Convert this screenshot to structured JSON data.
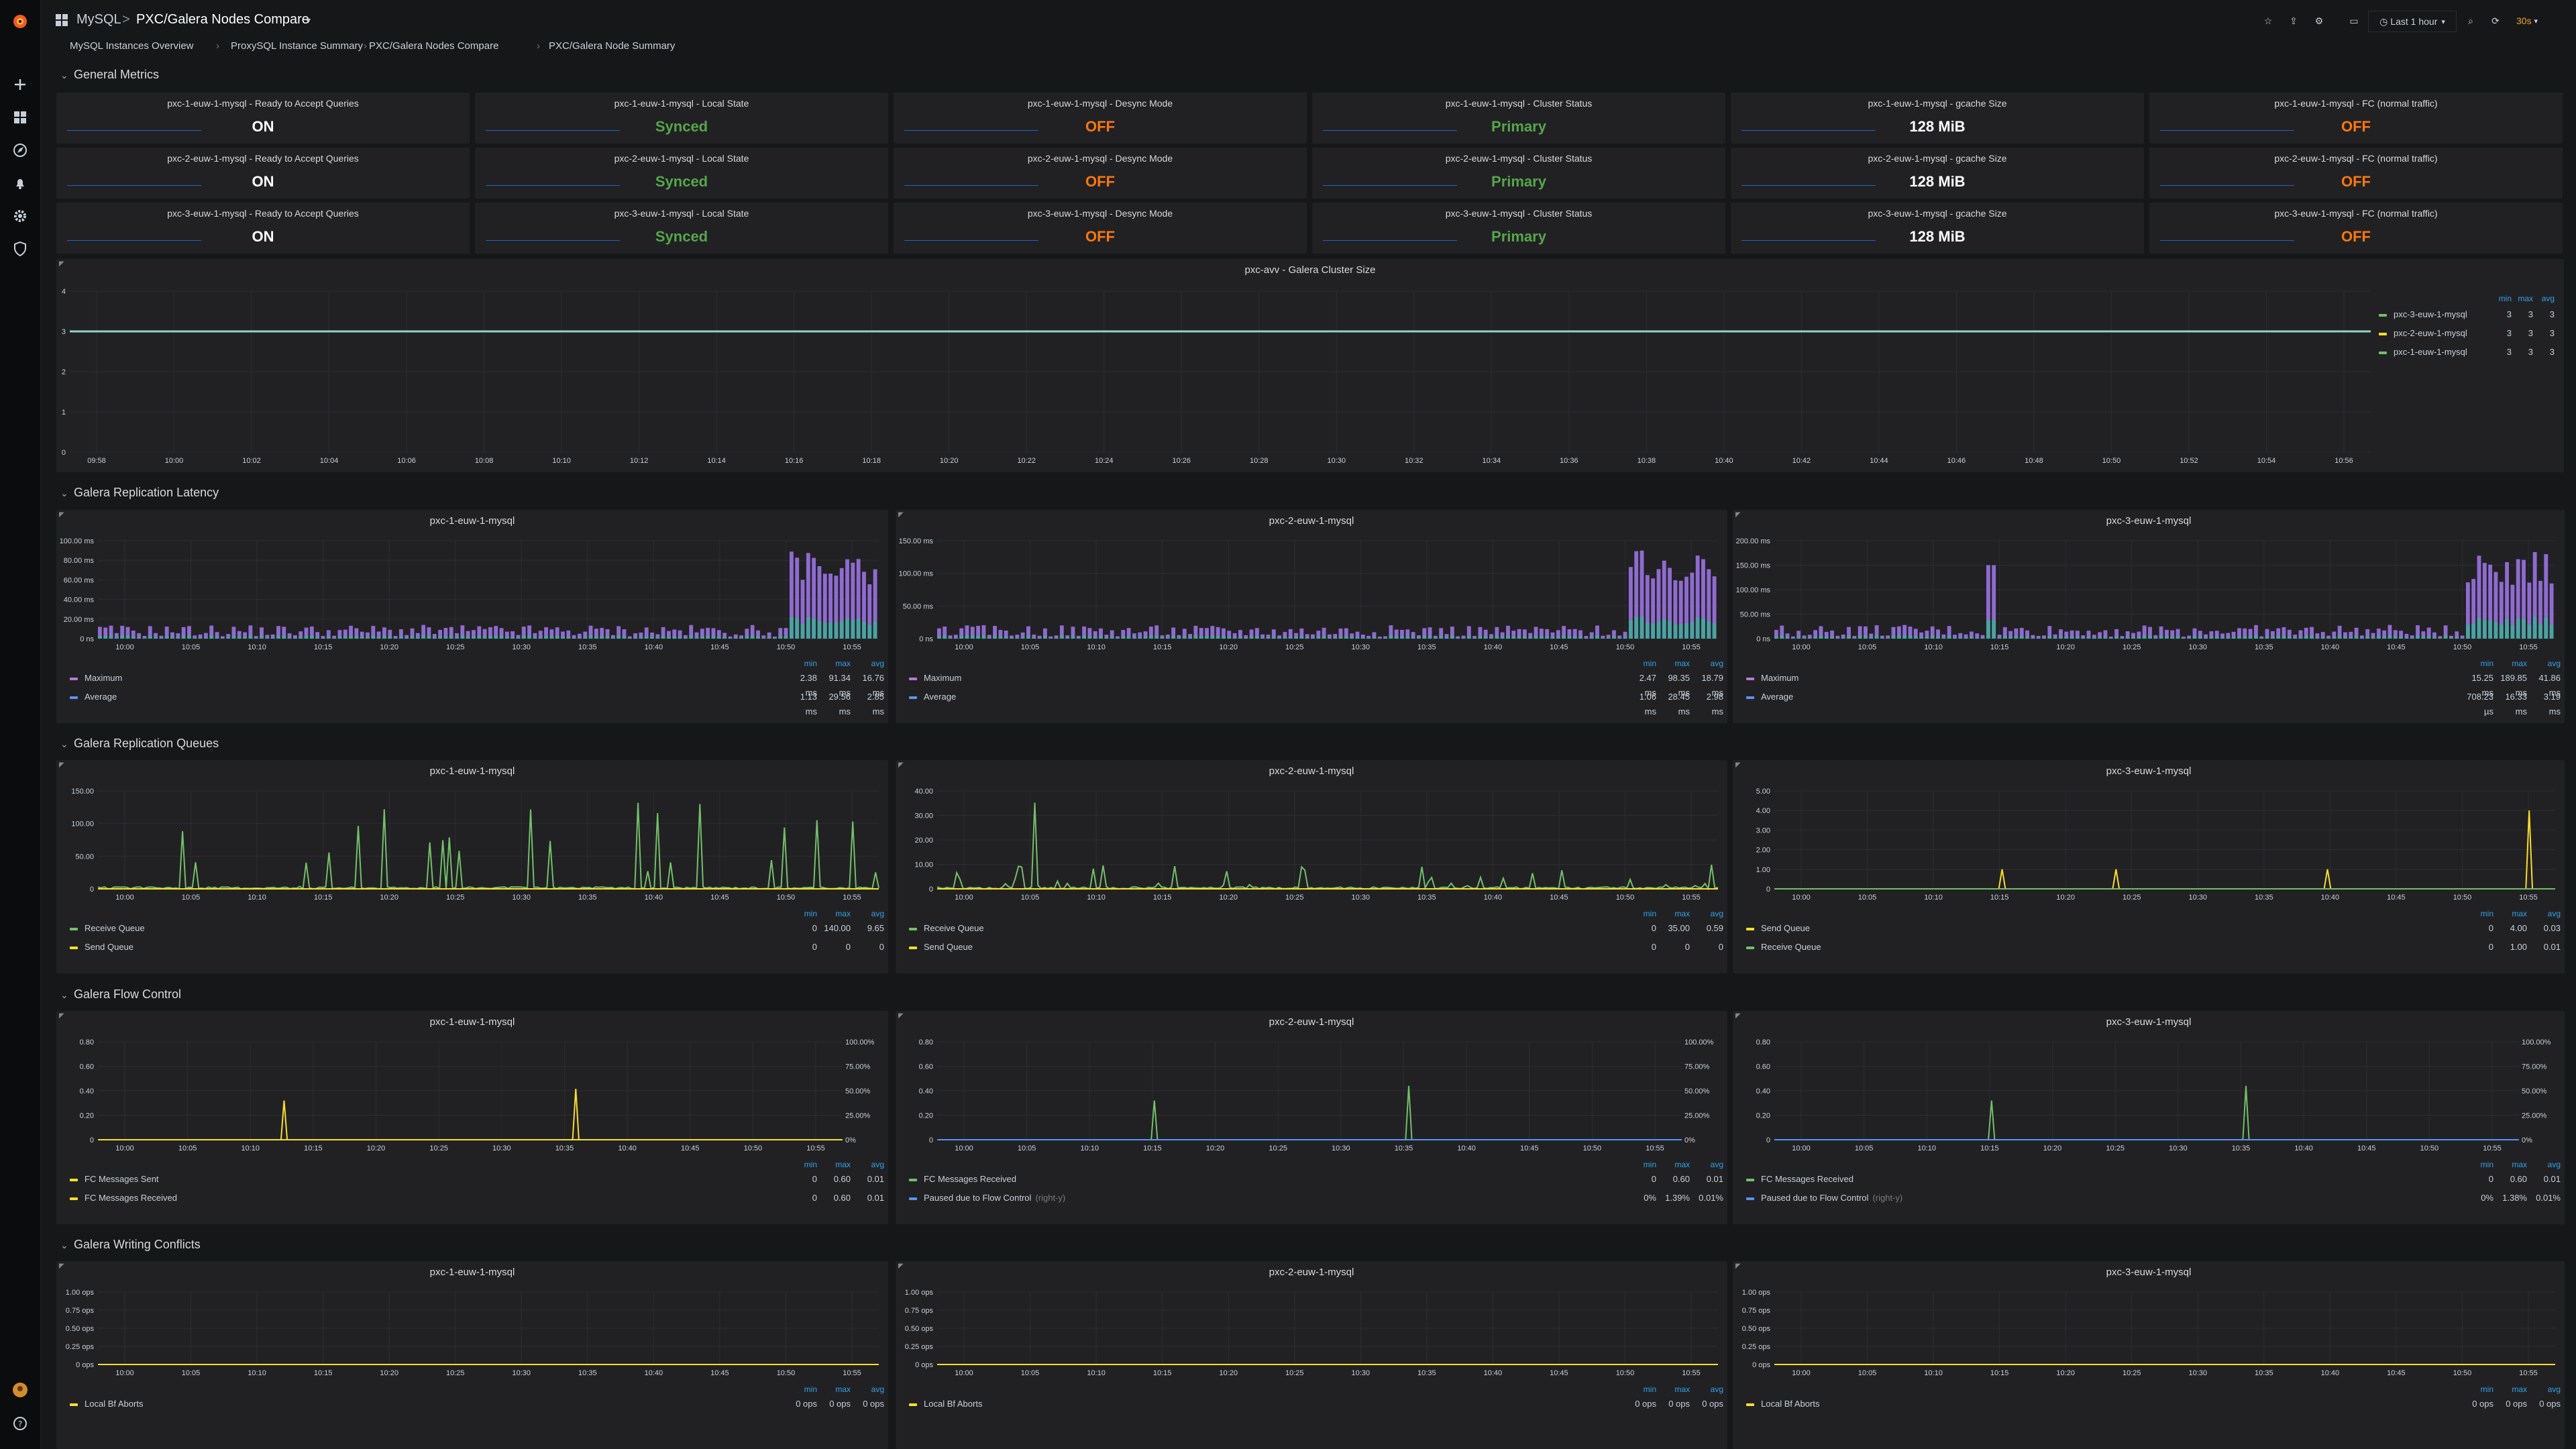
{
  "header": {
    "folder": "MySQL",
    "separator": ">",
    "title": "PXC/Galera Nodes Compare",
    "time_range": "Last 1 hour",
    "refresh": "30s"
  },
  "breadcrumbs": [
    "MySQL Instances Overview",
    "ProxySQL Instance Summary",
    "PXC/Galera Nodes Compare",
    "PXC/Galera Node Summary"
  ],
  "sections": {
    "general": "General Metrics",
    "latency": "Galera Replication Latency",
    "queues": "Galera Replication Queues",
    "flow": "Galera Flow Control",
    "conflicts": "Galera Writing Conflicts"
  },
  "stats": [
    [
      {
        "title": "pxc-1-euw-1-mysql - Ready to Accept Queries",
        "value": "ON",
        "color": "#ffffff"
      },
      {
        "title": "pxc-1-euw-1-mysql - Local State",
        "value": "Synced",
        "color": "#56a64b"
      },
      {
        "title": "pxc-1-euw-1-mysql - Desync Mode",
        "value": "OFF",
        "color": "#ff780a"
      },
      {
        "title": "pxc-1-euw-1-mysql - Cluster Status",
        "value": "Primary",
        "color": "#56a64b"
      },
      {
        "title": "pxc-1-euw-1-mysql - gcache Size",
        "value": "128 MiB",
        "color": "#ffffff"
      },
      {
        "title": "pxc-1-euw-1-mysql - FC (normal traffic)",
        "value": "OFF",
        "color": "#ff780a"
      }
    ],
    [
      {
        "title": "pxc-2-euw-1-mysql - Ready to Accept Queries",
        "value": "ON",
        "color": "#ffffff"
      },
      {
        "title": "pxc-2-euw-1-mysql - Local State",
        "value": "Synced",
        "color": "#56a64b"
      },
      {
        "title": "pxc-2-euw-1-mysql - Desync Mode",
        "value": "OFF",
        "color": "#ff780a"
      },
      {
        "title": "pxc-2-euw-1-mysql - Cluster Status",
        "value": "Primary",
        "color": "#56a64b"
      },
      {
        "title": "pxc-2-euw-1-mysql - gcache Size",
        "value": "128 MiB",
        "color": "#ffffff"
      },
      {
        "title": "pxc-2-euw-1-mysql - FC (normal traffic)",
        "value": "OFF",
        "color": "#ff780a"
      }
    ],
    [
      {
        "title": "pxc-3-euw-1-mysql - Ready to Accept Queries",
        "value": "ON",
        "color": "#ffffff"
      },
      {
        "title": "pxc-3-euw-1-mysql - Local State",
        "value": "Synced",
        "color": "#56a64b"
      },
      {
        "title": "pxc-3-euw-1-mysql - Desync Mode",
        "value": "OFF",
        "color": "#ff780a"
      },
      {
        "title": "pxc-3-euw-1-mysql - Cluster Status",
        "value": "Primary",
        "color": "#56a64b"
      },
      {
        "title": "pxc-3-euw-1-mysql - gcache Size",
        "value": "128 MiB",
        "color": "#ffffff"
      },
      {
        "title": "pxc-3-euw-1-mysql - FC (normal traffic)",
        "value": "OFF",
        "color": "#ff780a"
      }
    ]
  ],
  "cluster_size": {
    "title": "pxc-avv - Galera Cluster Size",
    "yticks": [
      "4",
      "3",
      "2",
      "1",
      "0"
    ],
    "xticks": [
      "09:58",
      "10:00",
      "10:02",
      "10:04",
      "10:06",
      "10:08",
      "10:10",
      "10:12",
      "10:14",
      "10:16",
      "10:18",
      "10:20",
      "10:22",
      "10:24",
      "10:26",
      "10:28",
      "10:30",
      "10:32",
      "10:34",
      "10:36",
      "10:38",
      "10:40",
      "10:42",
      "10:44",
      "10:46",
      "10:48",
      "10:50",
      "10:52",
      "10:54",
      "10:56"
    ],
    "legend_headers": [
      "min",
      "max",
      "avg"
    ],
    "legend": [
      {
        "name": "pxc-3-euw-1-mysql",
        "color": "#73bf69",
        "min": "3",
        "max": "3",
        "avg": "3"
      },
      {
        "name": "pxc-2-euw-1-mysql",
        "color": "#fade2a",
        "min": "3",
        "max": "3",
        "avg": "3"
      },
      {
        "name": "pxc-1-euw-1-mysql",
        "color": "#73bf69",
        "min": "3",
        "max": "3",
        "avg": "3"
      }
    ]
  },
  "xticks_hour": [
    "10:00",
    "10:05",
    "10:10",
    "10:15",
    "10:20",
    "10:25",
    "10:30",
    "10:35",
    "10:40",
    "10:45",
    "10:50",
    "10:55"
  ],
  "latency": [
    {
      "title": "pxc-1-euw-1-mysql",
      "yticks": [
        "100.00 ms",
        "80.00 ms",
        "60.00 ms",
        "40.00 ms",
        "20.00 ms",
        "0 ns"
      ],
      "headers": [
        "min",
        "max",
        "avg"
      ],
      "rows": [
        {
          "name": "Maximum",
          "color": "#b877d9",
          "min": "2.38 ms",
          "max": "91.34 ms",
          "avg": "16.76 ms"
        },
        {
          "name": "Average",
          "color": "#5794f2",
          "min": "1.13 ms",
          "max": "29.56 ms",
          "avg": "2.85 ms"
        }
      ]
    },
    {
      "title": "pxc-2-euw-1-mysql",
      "yticks": [
        "150.00 ms",
        "100.00 ms",
        "50.00 ms",
        "0 ns"
      ],
      "headers": [
        "min",
        "max",
        "avg"
      ],
      "rows": [
        {
          "name": "Maximum",
          "color": "#b877d9",
          "min": "2.47 ms",
          "max": "98.35 ms",
          "avg": "18.79 ms"
        },
        {
          "name": "Average",
          "color": "#5794f2",
          "min": "1.06 ms",
          "max": "28.45 ms",
          "avg": "2.98 ms"
        }
      ]
    },
    {
      "title": "pxc-3-euw-1-mysql",
      "yticks": [
        "200.00 ms",
        "150.00 ms",
        "100.00 ms",
        "50.00 ms",
        "0 ns"
      ],
      "headers": [
        "min",
        "max",
        "avg"
      ],
      "rows": [
        {
          "name": "Maximum",
          "color": "#b877d9",
          "min": "15.25 ms",
          "max": "189.85 ms",
          "avg": "41.86 ms"
        },
        {
          "name": "Average",
          "color": "#5794f2",
          "min": "708.23 µs",
          "max": "16.33 ms",
          "avg": "3.19 ms"
        }
      ]
    }
  ],
  "queues": [
    {
      "title": "pxc-1-euw-1-mysql",
      "yticks": [
        "150.00",
        "100.00",
        "50.00",
        "0"
      ],
      "headers": [
        "min",
        "max",
        "avg"
      ],
      "rows": [
        {
          "name": "Receive Queue",
          "color": "#73bf69",
          "min": "0",
          "max": "140.00",
          "avg": "9.65"
        },
        {
          "name": "Send Queue",
          "color": "#fade2a",
          "min": "0",
          "max": "0",
          "avg": "0"
        }
      ]
    },
    {
      "title": "pxc-2-euw-1-mysql",
      "yticks": [
        "40.00",
        "30.00",
        "20.00",
        "10.00",
        "0"
      ],
      "headers": [
        "min",
        "max",
        "avg"
      ],
      "rows": [
        {
          "name": "Receive Queue",
          "color": "#73bf69",
          "min": "0",
          "max": "35.00",
          "avg": "0.59"
        },
        {
          "name": "Send Queue",
          "color": "#fade2a",
          "min": "0",
          "max": "0",
          "avg": "0"
        }
      ]
    },
    {
      "title": "pxc-3-euw-1-mysql",
      "yticks": [
        "5.00",
        "4.00",
        "3.00",
        "2.00",
        "1.00",
        "0"
      ],
      "headers": [
        "min",
        "max",
        "avg"
      ],
      "rows": [
        {
          "name": "Send Queue",
          "color": "#fade2a",
          "min": "0",
          "max": "4.00",
          "avg": "0.03"
        },
        {
          "name": "Receive Queue",
          "color": "#73bf69",
          "min": "0",
          "max": "1.00",
          "avg": "0.01"
        }
      ]
    }
  ],
  "flow": [
    {
      "title": "pxc-1-euw-1-mysql",
      "yticks": [
        "0.80",
        "0.60",
        "0.40",
        "0.20",
        "0"
      ],
      "rticks": [
        "100.00%",
        "75.00%",
        "50.00%",
        "25.00%",
        "0%"
      ],
      "headers": [
        "min",
        "max",
        "avg"
      ],
      "rows": [
        {
          "name": "FC Messages Sent",
          "suffix": "",
          "color": "#fade2a",
          "min": "0",
          "max": "0.60",
          "avg": "0.01"
        },
        {
          "name": "FC Messages Received",
          "suffix": "",
          "color": "#fade2a",
          "min": "0",
          "max": "0.60",
          "avg": "0.01"
        }
      ]
    },
    {
      "title": "pxc-2-euw-1-mysql",
      "yticks": [
        "0.80",
        "0.60",
        "0.40",
        "0.20",
        "0"
      ],
      "rticks": [
        "100.00%",
        "75.00%",
        "50.00%",
        "25.00%",
        "0%"
      ],
      "headers": [
        "min",
        "max",
        "avg"
      ],
      "rows": [
        {
          "name": "FC Messages Received",
          "suffix": "",
          "color": "#73bf69",
          "min": "0",
          "max": "0.60",
          "avg": "0.01"
        },
        {
          "name": "Paused due to Flow Control",
          "suffix": "(right-y)",
          "color": "#5794f2",
          "min": "0%",
          "max": "1.39%",
          "avg": "0.01%"
        }
      ]
    },
    {
      "title": "pxc-3-euw-1-mysql",
      "yticks": [
        "0.80",
        "0.60",
        "0.40",
        "0.20",
        "0"
      ],
      "rticks": [
        "100.00%",
        "75.00%",
        "50.00%",
        "25.00%",
        "0%"
      ],
      "headers": [
        "min",
        "max",
        "avg"
      ],
      "rows": [
        {
          "name": "FC Messages Received",
          "suffix": "",
          "color": "#73bf69",
          "min": "0",
          "max": "0.60",
          "avg": "0.01"
        },
        {
          "name": "Paused due to Flow Control",
          "suffix": "(right-y)",
          "color": "#5794f2",
          "min": "0%",
          "max": "1.38%",
          "avg": "0.01%"
        }
      ]
    }
  ],
  "conflicts": [
    {
      "title": "pxc-1-euw-1-mysql",
      "yticks": [
        "1.00 ops",
        "0.75 ops",
        "0.50 ops",
        "0.25 ops",
        "0 ops"
      ],
      "headers": [
        "min",
        "max",
        "avg"
      ],
      "rows": [
        {
          "name": "Local Bf Aborts",
          "color": "#fade2a",
          "min": "0 ops",
          "max": "0 ops",
          "avg": "0 ops"
        }
      ]
    },
    {
      "title": "pxc-2-euw-1-mysql",
      "yticks": [
        "1.00 ops",
        "0.75 ops",
        "0.50 ops",
        "0.25 ops",
        "0 ops"
      ],
      "headers": [
        "min",
        "max",
        "avg"
      ],
      "rows": [
        {
          "name": "Local Bf Aborts",
          "color": "#fade2a",
          "min": "0 ops",
          "max": "0 ops",
          "avg": "0 ops"
        }
      ]
    },
    {
      "title": "pxc-3-euw-1-mysql",
      "yticks": [
        "1.00 ops",
        "0.75 ops",
        "0.50 ops",
        "0.25 ops",
        "0 ops"
      ],
      "headers": [
        "min",
        "max",
        "avg"
      ],
      "rows": [
        {
          "name": "Local Bf Aborts",
          "color": "#fade2a",
          "min": "0 ops",
          "max": "0 ops",
          "avg": "0 ops"
        }
      ]
    }
  ],
  "colors": {
    "background": "#161719",
    "panel": "#212124",
    "grid": "#2c2d30",
    "accent": "#33a2e5"
  }
}
